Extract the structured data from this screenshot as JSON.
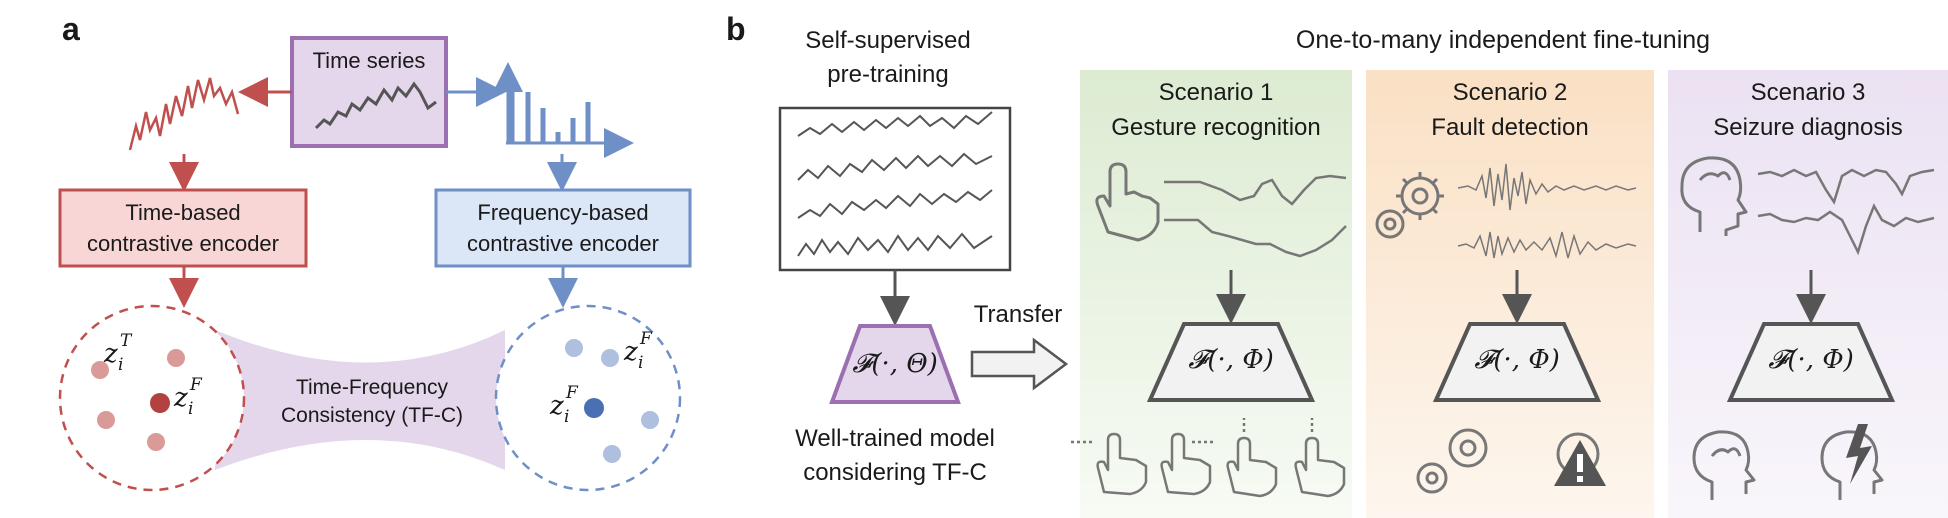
{
  "colors": {
    "time_red": "#c0504d",
    "time_red_fill": "#f7d6d5",
    "freq_blue": "#6f8fc7",
    "freq_blue_fill": "#dbe6f7",
    "purple": "#9b6fb0",
    "purple_fill": "#e4d7ec",
    "scenario1_bg": "#e4f0dc",
    "scenario2_bg": "#fbe6cf",
    "scenario3_bg": "#eee6f4",
    "gray_icon": "#777777"
  },
  "panel_a": {
    "letter": "a",
    "time_series_label": "Time series",
    "time_encoder_line1": "Time-based",
    "time_encoder_line2": "contrastive encoder",
    "freq_encoder_line1": "Frequency-based",
    "freq_encoder_line2": "contrastive encoder",
    "tfc_line1": "Time-Frequency",
    "tfc_line2": "Consistency (TF-C)",
    "z_symbol": "z",
    "z_sub": "i",
    "z_sup_left": "T",
    "z_sup_right": "F"
  },
  "panel_b": {
    "letter": "b",
    "pretrain_line1": "Self-supervised",
    "pretrain_line2": "pre-training",
    "finetune_title": "One-to-many independent fine-tuning",
    "transfer_label": "Transfer",
    "pretrained_model": "𝓕(·, Θ)",
    "model_caption_line1": "Well-trained model",
    "model_caption_line2": "considering TF-C",
    "scenarios": [
      {
        "title": "Scenario 1",
        "subtitle": "Gesture recognition",
        "model": "𝓕(·, Φ)"
      },
      {
        "title": "Scenario 2",
        "subtitle": "Fault detection",
        "model": "𝓕(·, Φ)"
      },
      {
        "title": "Scenario 3",
        "subtitle": "Seizure diagnosis",
        "model": "𝓕(·, Φ)"
      }
    ]
  }
}
